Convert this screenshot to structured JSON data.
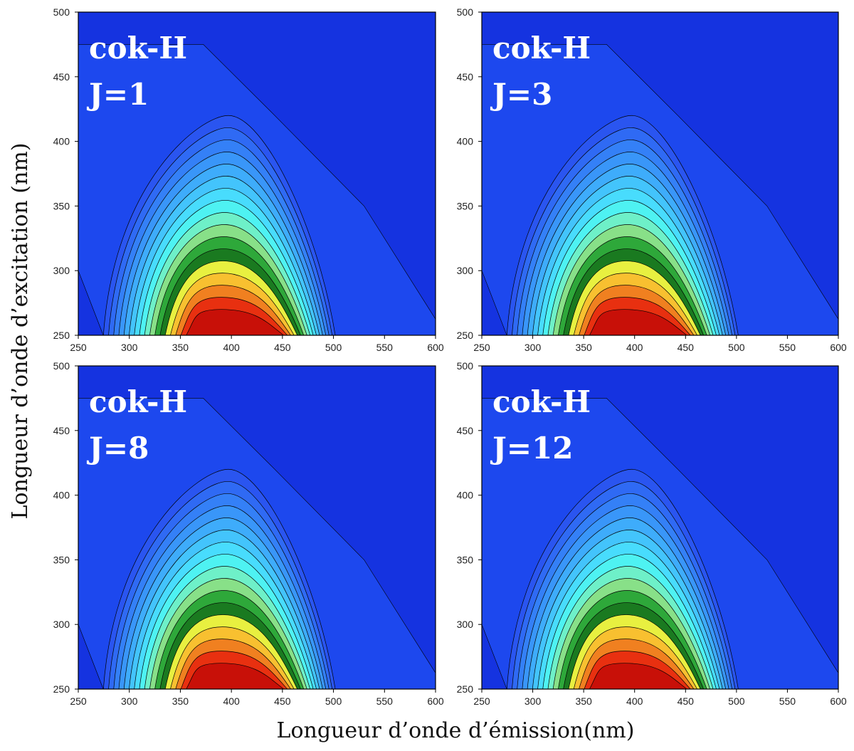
{
  "chart_data": [
    {
      "type": "contour",
      "title": "cok-H",
      "subtitle": "J=1",
      "xlim": [
        250,
        600
      ],
      "xticks": [
        250,
        300,
        350,
        400,
        450,
        500,
        550,
        600
      ],
      "ylim": [
        250,
        500
      ],
      "yticks": [
        250,
        300,
        350,
        400,
        450,
        500
      ]
    },
    {
      "type": "contour",
      "title": "cok-H",
      "subtitle": "J=3",
      "xlim": [
        250,
        600
      ],
      "xticks": [
        250,
        300,
        350,
        400,
        450,
        500,
        550,
        600
      ],
      "ylim": [
        250,
        500
      ],
      "yticks": [
        250,
        300,
        350,
        400,
        450,
        500
      ]
    },
    {
      "type": "contour",
      "title": "cok-H",
      "subtitle": "J=8",
      "xlim": [
        250,
        600
      ],
      "xticks": [
        250,
        300,
        350,
        400,
        450,
        500,
        550,
        600
      ],
      "ylim": [
        250,
        500
      ],
      "yticks": [
        250,
        300,
        350,
        400,
        450,
        500
      ]
    },
    {
      "type": "contour",
      "title": "cok-H",
      "subtitle": "J=12",
      "xlim": [
        250,
        600
      ],
      "xticks": [
        250,
        300,
        350,
        400,
        450,
        500,
        550,
        600
      ],
      "ylim": [
        250,
        500
      ],
      "yticks": [
        250,
        300,
        350,
        400,
        450,
        500
      ]
    }
  ],
  "axis_labels": {
    "x": "Longueur d’onde d’émission(nm)",
    "y": "Longueur d’onde d’excitation (nm)"
  }
}
